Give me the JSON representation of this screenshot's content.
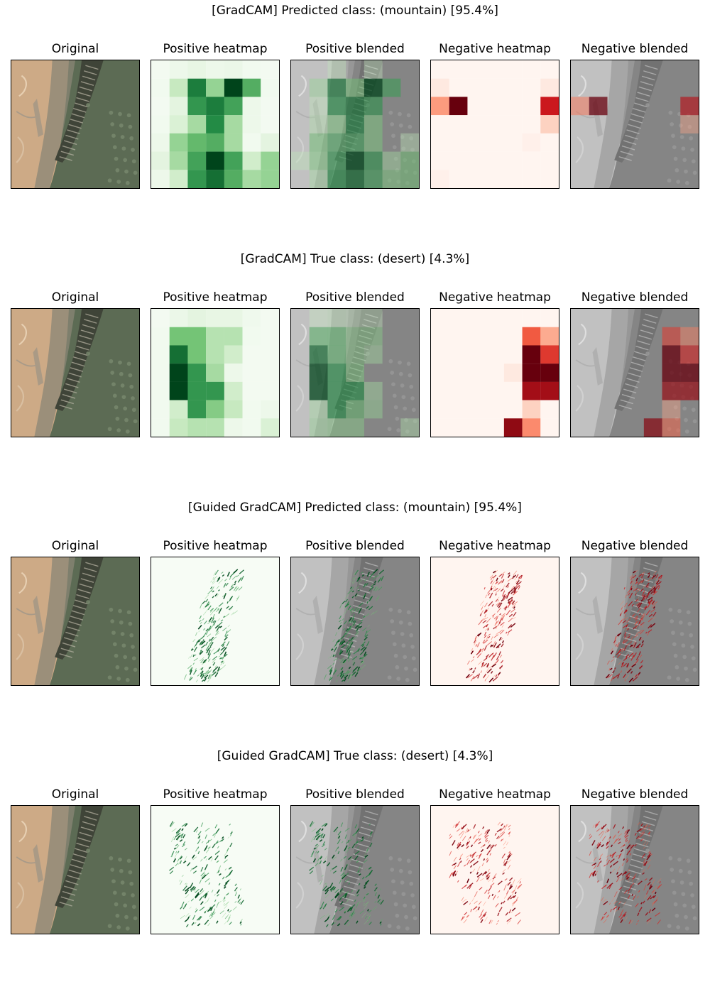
{
  "figure": {
    "columns": [
      {
        "title": "Original",
        "kind": "original"
      },
      {
        "title": "Positive heatmap",
        "kind": "pos-heatmap"
      },
      {
        "title": "Positive blended",
        "kind": "pos-blended"
      },
      {
        "title": "Negative heatmap",
        "kind": "neg-heatmap"
      },
      {
        "title": "Negative blended",
        "kind": "neg-blended"
      }
    ],
    "rows": [
      {
        "title": "[GradCAM] Predicted class: (mountain) [95.4%]",
        "method": "gradcam",
        "positive_grid": [
          [
            0.02,
            0.05,
            0.08,
            0.05,
            0.06,
            0.03,
            0.02
          ],
          [
            0.03,
            0.25,
            0.8,
            0.4,
            1.0,
            0.6,
            0.03
          ],
          [
            0.02,
            0.1,
            0.7,
            0.8,
            0.65,
            0.05,
            0.02
          ],
          [
            0.03,
            0.15,
            0.35,
            0.75,
            0.35,
            0.05,
            0.02
          ],
          [
            0.05,
            0.4,
            0.55,
            0.6,
            0.35,
            0.03,
            0.1
          ],
          [
            0.1,
            0.35,
            0.65,
            1.0,
            0.65,
            0.2,
            0.4
          ],
          [
            0.05,
            0.2,
            0.7,
            0.85,
            0.6,
            0.35,
            0.4
          ]
        ],
        "negative_grid": [
          [
            0.0,
            0.0,
            0.0,
            0.0,
            0.0,
            0.0,
            0.0
          ],
          [
            0.05,
            0.0,
            0.0,
            0.0,
            0.0,
            0.0,
            0.05
          ],
          [
            0.35,
            1.0,
            0.0,
            0.0,
            0.0,
            0.0,
            0.75
          ],
          [
            0.0,
            0.0,
            0.0,
            0.0,
            0.0,
            0.0,
            0.15
          ],
          [
            0.0,
            0.0,
            0.0,
            0.0,
            0.0,
            0.02,
            0.0
          ],
          [
            0.0,
            0.0,
            0.0,
            0.0,
            0.0,
            0.0,
            0.0
          ],
          [
            0.02,
            0.0,
            0.0,
            0.0,
            0.0,
            0.0,
            0.0
          ]
        ]
      },
      {
        "title": "[GradCAM] True class: (desert) [4.3%]",
        "method": "gradcam",
        "positive_grid": [
          [
            0.02,
            0.06,
            0.1,
            0.08,
            0.08,
            0.04,
            0.02
          ],
          [
            0.03,
            0.5,
            0.5,
            0.3,
            0.3,
            0.03,
            0.02
          ],
          [
            0.03,
            0.85,
            0.5,
            0.3,
            0.2,
            0.02,
            0.02
          ],
          [
            0.03,
            1.0,
            0.7,
            0.35,
            0.05,
            0.02,
            0.02
          ],
          [
            0.03,
            1.0,
            0.7,
            0.7,
            0.2,
            0.02,
            0.02
          ],
          [
            0.03,
            0.2,
            0.7,
            0.45,
            0.25,
            0.03,
            0.05
          ],
          [
            0.03,
            0.25,
            0.3,
            0.3,
            0.05,
            0.03,
            0.15
          ]
        ],
        "negative_grid": [
          [
            0.0,
            0.0,
            0.0,
            0.0,
            0.0,
            0.0,
            0.0
          ],
          [
            0.0,
            0.0,
            0.0,
            0.0,
            0.0,
            0.55,
            0.3
          ],
          [
            0.0,
            0.0,
            0.0,
            0.0,
            0.0,
            1.0,
            0.65
          ],
          [
            0.0,
            0.0,
            0.0,
            0.0,
            0.05,
            1.0,
            1.0
          ],
          [
            0.0,
            0.0,
            0.0,
            0.0,
            0.0,
            0.85,
            0.85
          ],
          [
            0.0,
            0.0,
            0.0,
            0.0,
            0.0,
            0.15,
            0.0
          ],
          [
            0.0,
            0.0,
            0.0,
            0.0,
            0.9,
            0.4,
            0.0
          ]
        ]
      },
      {
        "title": "[Guided GradCAM] Predicted class: (mountain) [95.4%]",
        "method": "guided-gradcam",
        "focus": "ridge"
      },
      {
        "title": "[Guided GradCAM] True class: (desert) [4.3%]",
        "method": "guided-gradcam",
        "focus": "left-lowlands"
      }
    ],
    "colors": {
      "positive_colormap": "Greens",
      "negative_colormap": "Reds",
      "desert_tan": "#cdaa86",
      "mountain_dark": "#3f4438",
      "vegetation": "#5c6b54",
      "panel_border": "#000000"
    }
  }
}
